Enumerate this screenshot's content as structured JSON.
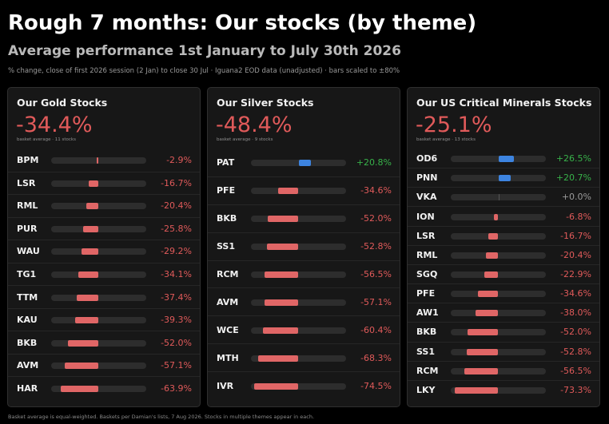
{
  "header": {
    "title": "Rough 7 months: Our stocks (by theme)",
    "subtitle": "Average performance 1st January to July 30th 2026",
    "caption": "% change, close of first 2026 session (2 Jan) to close 30 Jul · Iguana2 EOD data (unadjusted) · bars scaled to ±80%"
  },
  "footer": "Basket average is equal-weighted. Baskets per Damian's lists, 7 Aug 2026. Stocks in multiple themes appear in each.",
  "colors": {
    "negative": "#e06666",
    "positive": "#3d84e0",
    "neg_text": "#e05a5a",
    "pos_text": "#38b24a",
    "zero_text": "#9a9a9a"
  },
  "scale_max": 80,
  "panels": [
    {
      "title": "Our Gold Stocks",
      "average": "-34.4%",
      "note": "basket average · 11 stocks",
      "stocks": [
        {
          "ticker": "BPM",
          "value": -2.9,
          "label": "-2.9%"
        },
        {
          "ticker": "LSR",
          "value": -16.7,
          "label": "-16.7%"
        },
        {
          "ticker": "RML",
          "value": -20.4,
          "label": "-20.4%"
        },
        {
          "ticker": "PUR",
          "value": -25.8,
          "label": "-25.8%"
        },
        {
          "ticker": "WAU",
          "value": -29.2,
          "label": "-29.2%"
        },
        {
          "ticker": "TG1",
          "value": -34.1,
          "label": "-34.1%"
        },
        {
          "ticker": "TTM",
          "value": -37.4,
          "label": "-37.4%"
        },
        {
          "ticker": "KAU",
          "value": -39.3,
          "label": "-39.3%"
        },
        {
          "ticker": "BKB",
          "value": -52.0,
          "label": "-52.0%"
        },
        {
          "ticker": "AVM",
          "value": -57.1,
          "label": "-57.1%"
        },
        {
          "ticker": "HAR",
          "value": -63.9,
          "label": "-63.9%"
        }
      ]
    },
    {
      "title": "Our Silver Stocks",
      "average": "-48.4%",
      "note": "basket average · 9 stocks",
      "stocks": [
        {
          "ticker": "PAT",
          "value": 20.8,
          "label": "+20.8%"
        },
        {
          "ticker": "PFE",
          "value": -34.6,
          "label": "-34.6%"
        },
        {
          "ticker": "BKB",
          "value": -52.0,
          "label": "-52.0%"
        },
        {
          "ticker": "SS1",
          "value": -52.8,
          "label": "-52.8%"
        },
        {
          "ticker": "RCM",
          "value": -56.5,
          "label": "-56.5%"
        },
        {
          "ticker": "AVM",
          "value": -57.1,
          "label": "-57.1%"
        },
        {
          "ticker": "WCE",
          "value": -60.4,
          "label": "-60.4%"
        },
        {
          "ticker": "MTH",
          "value": -68.3,
          "label": "-68.3%"
        },
        {
          "ticker": "IVR",
          "value": -74.5,
          "label": "-74.5%"
        }
      ]
    },
    {
      "title": "Our US Critical Minerals Stocks",
      "average": "-25.1%",
      "note": "basket average · 13 stocks",
      "stocks": [
        {
          "ticker": "OD6",
          "value": 26.5,
          "label": "+26.5%"
        },
        {
          "ticker": "PNN",
          "value": 20.7,
          "label": "+20.7%"
        },
        {
          "ticker": "VKA",
          "value": 0.0,
          "label": "+0.0%"
        },
        {
          "ticker": "ION",
          "value": -6.8,
          "label": "-6.8%"
        },
        {
          "ticker": "LSR",
          "value": -16.7,
          "label": "-16.7%"
        },
        {
          "ticker": "RML",
          "value": -20.4,
          "label": "-20.4%"
        },
        {
          "ticker": "SGQ",
          "value": -22.9,
          "label": "-22.9%"
        },
        {
          "ticker": "PFE",
          "value": -34.6,
          "label": "-34.6%"
        },
        {
          "ticker": "AW1",
          "value": -38.0,
          "label": "-38.0%"
        },
        {
          "ticker": "BKB",
          "value": -52.0,
          "label": "-52.0%"
        },
        {
          "ticker": "SS1",
          "value": -52.8,
          "label": "-52.8%"
        },
        {
          "ticker": "RCM",
          "value": -56.5,
          "label": "-56.5%"
        },
        {
          "ticker": "LKY",
          "value": -73.3,
          "label": "-73.3%"
        }
      ]
    }
  ]
}
